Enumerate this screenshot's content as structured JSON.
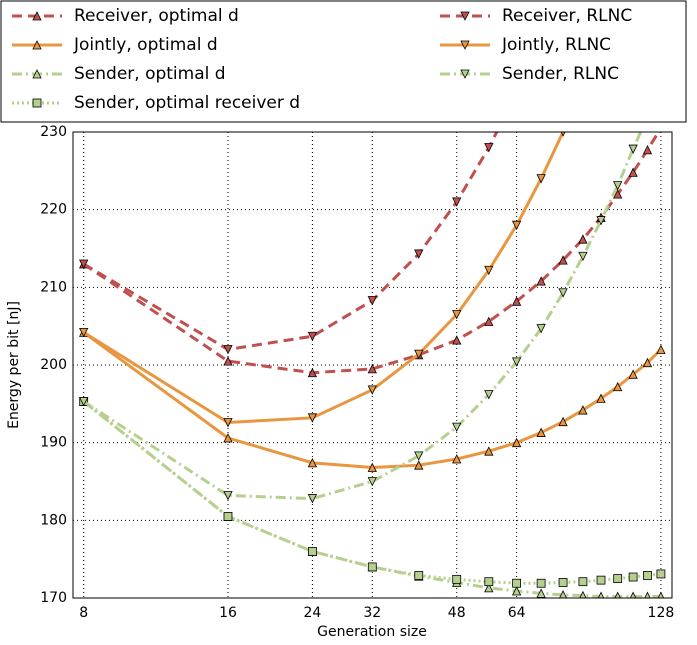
{
  "chart_data": {
    "type": "line",
    "x_label": "Generation size",
    "y_label": "Energy per bit [nJ]",
    "x": [
      8,
      16,
      24,
      32,
      40,
      48,
      56,
      64,
      72,
      80,
      88,
      96,
      104,
      112,
      120,
      128
    ],
    "xlim": [
      7.6,
      135
    ],
    "xticks": [
      8,
      16,
      24,
      32,
      48,
      64,
      128
    ],
    "log_x": 2,
    "ylim": [
      170,
      230
    ],
    "yticks": [
      170,
      180,
      190,
      200,
      210,
      220,
      230
    ],
    "grid": true,
    "legend": "top",
    "series": [
      {
        "name": "Receiver, optimal d",
        "color": "#c0504d",
        "linestyle": "dashed",
        "marker": "triangle-up",
        "values": [
          213,
          200.5,
          199,
          199.5,
          201.3,
          203.2,
          205.6,
          208.2,
          210.8,
          213.5,
          216.2,
          219,
          222,
          224.8,
          227.7,
          230.5
        ]
      },
      {
        "name": "Jointly, optimal d",
        "color": "#e8963f",
        "linestyle": "solid",
        "marker": "triangle-up",
        "values": [
          204.2,
          190.6,
          187.4,
          186.8,
          187.1,
          187.9,
          188.9,
          190,
          191.3,
          192.7,
          194.2,
          195.7,
          197.2,
          198.8,
          200.3,
          202
        ]
      },
      {
        "name": "Sender, optimal d",
        "color": "#b5cf8e",
        "linestyle": "dashdot",
        "marker": "triangle-up",
        "values": [
          195.3,
          180.5,
          176,
          174,
          172.8,
          172,
          171.3,
          170.9,
          170.6,
          170.4,
          170.3,
          170.2,
          170.2,
          170.2,
          170.2,
          170.2
        ]
      },
      {
        "name": "Sender, optimal receiver d",
        "color": "#b5cf8e",
        "linestyle": "dotted",
        "marker": "square",
        "values": [
          195.3,
          180.5,
          176,
          174,
          172.9,
          172.4,
          172.1,
          171.9,
          171.9,
          172,
          172.1,
          172.3,
          172.5,
          172.7,
          172.9,
          173.1
        ]
      },
      {
        "name": "Receiver, RLNC",
        "color": "#c0504d",
        "linestyle": "dashed",
        "marker": "triangle-down",
        "values": [
          213,
          202,
          203.7,
          208.3,
          214.3,
          221,
          228,
          235,
          null,
          null,
          null,
          null,
          null,
          null,
          null,
          null
        ]
      },
      {
        "name": "Jointly, RLNC",
        "color": "#e8963f",
        "linestyle": "solid",
        "marker": "triangle-down",
        "values": [
          204.2,
          192.6,
          193.2,
          196.8,
          201.4,
          206.5,
          212.2,
          218,
          224,
          230,
          null,
          null,
          null,
          null,
          null,
          null
        ]
      },
      {
        "name": "Sender, RLNC",
        "color": "#b5cf8e",
        "linestyle": "dashdot",
        "marker": "triangle-down",
        "values": [
          195.3,
          183.2,
          182.8,
          185,
          188.3,
          192,
          196.2,
          200.4,
          204.7,
          209.3,
          214,
          218.6,
          223.1,
          227.8,
          232,
          null
        ]
      }
    ]
  }
}
